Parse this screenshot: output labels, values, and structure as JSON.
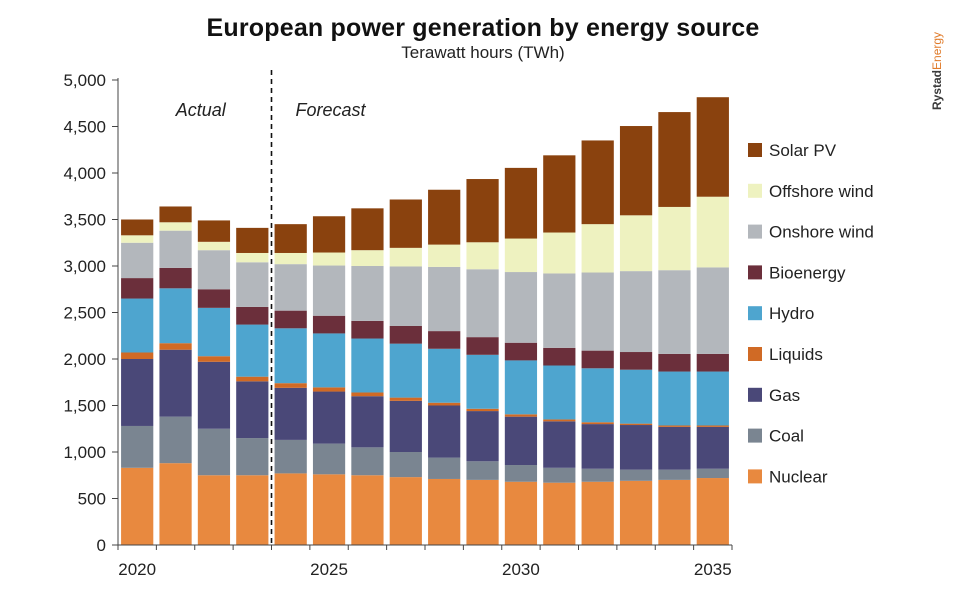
{
  "header": {
    "title": "European power generation by energy source",
    "subtitle": "Terawatt hours (TWh)"
  },
  "brand": {
    "part1": "Rystad",
    "part2": "Energy"
  },
  "chart_data": {
    "type": "bar",
    "stacked": true,
    "title": "European power generation by energy source",
    "subtitle": "Terawatt hours (TWh)",
    "xlabel": "",
    "ylabel": "",
    "ylim": [
      0,
      5000
    ],
    "yticks": [
      0,
      500,
      1000,
      1500,
      2000,
      2500,
      3000,
      3500,
      4000,
      4500,
      5000
    ],
    "ytick_labels": [
      "0",
      "500",
      "1,000",
      "1,500",
      "2,000",
      "2,500",
      "3,000",
      "3,500",
      "4,000",
      "4,500",
      "5,000"
    ],
    "x": [
      2020,
      2021,
      2022,
      2023,
      2024,
      2025,
      2026,
      2027,
      2028,
      2029,
      2030,
      2031,
      2032,
      2033,
      2034,
      2035
    ],
    "xtick_labels": [
      "2020",
      "2025",
      "2030",
      "2035"
    ],
    "xtick_values": [
      2020,
      2025,
      2030,
      2035
    ],
    "annotations": [
      {
        "text": "Actual",
        "period": "2020-2023"
      },
      {
        "text": "Forecast",
        "period": "2024-2035"
      }
    ],
    "divider_between": [
      2023,
      2024
    ],
    "legend_position": "right",
    "series": [
      {
        "name": "Nuclear",
        "color": "#e8893f",
        "values": [
          830,
          880,
          750,
          750,
          770,
          760,
          750,
          730,
          710,
          700,
          680,
          670,
          680,
          690,
          700,
          720
        ]
      },
      {
        "name": "Coal",
        "color": "#7a8591",
        "values": [
          450,
          500,
          500,
          400,
          360,
          330,
          300,
          270,
          230,
          200,
          180,
          160,
          140,
          120,
          110,
          100
        ]
      },
      {
        "name": "Gas",
        "color": "#4a4878",
        "values": [
          720,
          720,
          720,
          610,
          560,
          560,
          550,
          550,
          560,
          540,
          520,
          500,
          480,
          480,
          460,
          450
        ]
      },
      {
        "name": "Liquids",
        "color": "#d06a25",
        "values": [
          70,
          70,
          60,
          50,
          50,
          45,
          40,
          35,
          30,
          25,
          25,
          20,
          20,
          15,
          15,
          15
        ]
      },
      {
        "name": "Hydro",
        "color": "#4ea5cf",
        "values": [
          580,
          590,
          520,
          560,
          590,
          580,
          580,
          580,
          580,
          580,
          580,
          580,
          580,
          580,
          580,
          580
        ]
      },
      {
        "name": "Bioenergy",
        "color": "#6b2f3b",
        "values": [
          220,
          220,
          200,
          190,
          190,
          190,
          190,
          190,
          190,
          190,
          190,
          190,
          190,
          190,
          190,
          190
        ]
      },
      {
        "name": "Onshore wind",
        "color": "#b3b7bc",
        "values": [
          380,
          400,
          420,
          480,
          500,
          540,
          590,
          640,
          690,
          730,
          760,
          800,
          840,
          870,
          900,
          930
        ]
      },
      {
        "name": "Offshore wind",
        "color": "#eef2c0",
        "values": [
          80,
          90,
          90,
          100,
          120,
          140,
          170,
          200,
          240,
          290,
          360,
          440,
          520,
          600,
          680,
          760
        ]
      },
      {
        "name": "Solar PV",
        "color": "#8a420e",
        "values": [
          170,
          170,
          230,
          270,
          310,
          390,
          450,
          520,
          590,
          680,
          760,
          830,
          900,
          960,
          1020,
          1070
        ]
      }
    ]
  }
}
